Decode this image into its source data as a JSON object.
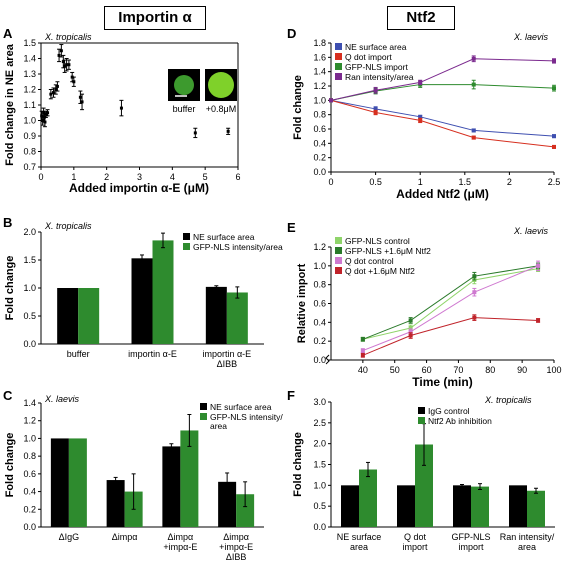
{
  "headers": {
    "left": "Importin α",
    "right": "Ntf2"
  },
  "colors": {
    "black": "#000000",
    "green": "#2e8b2e",
    "blue": "#3e4fb0",
    "red": "#d62f1f",
    "pink": "#cf79d0",
    "purple": "#7b2a8e",
    "lightgreen": "#8fd46a",
    "darkgreen": "#2a7a2a",
    "darkred": "#c0232a"
  },
  "chart_data": [
    {
      "panel": "A",
      "type": "scatter",
      "species": "X. tropicalis",
      "xlabel": "Added importin α-E (μM)",
      "ylabel": "Fold change in NE area",
      "xlim": [
        0,
        6
      ],
      "ylim": [
        0.7,
        1.5
      ],
      "xticks": [
        0,
        1,
        2,
        3,
        4,
        5,
        6
      ],
      "yticks": [
        0.7,
        0.8,
        0.9,
        1.0,
        1.1,
        1.2,
        1.3,
        1.4,
        1.5
      ],
      "inset_labels": [
        "buffer",
        "+0.8μM"
      ],
      "points": [
        {
          "x": 0.02,
          "y": 1.03,
          "e": 0.03
        },
        {
          "x": 0.05,
          "y": 1.0,
          "e": 0.03
        },
        {
          "x": 0.08,
          "y": 1.05,
          "e": 0.03
        },
        {
          "x": 0.1,
          "y": 1.02,
          "e": 0.03
        },
        {
          "x": 0.12,
          "y": 0.99,
          "e": 0.03
        },
        {
          "x": 0.15,
          "y": 1.04,
          "e": 0.02
        },
        {
          "x": 0.2,
          "y": 1.05,
          "e": 0.02
        },
        {
          "x": 0.3,
          "y": 1.17,
          "e": 0.03
        },
        {
          "x": 0.38,
          "y": 1.18,
          "e": 0.03
        },
        {
          "x": 0.45,
          "y": 1.2,
          "e": 0.03
        },
        {
          "x": 0.5,
          "y": 1.22,
          "e": 0.03
        },
        {
          "x": 0.55,
          "y": 1.42,
          "e": 0.04
        },
        {
          "x": 0.62,
          "y": 1.45,
          "e": 0.04
        },
        {
          "x": 0.68,
          "y": 1.38,
          "e": 0.04
        },
        {
          "x": 0.72,
          "y": 1.35,
          "e": 0.04
        },
        {
          "x": 0.78,
          "y": 1.36,
          "e": 0.04
        },
        {
          "x": 0.85,
          "y": 1.36,
          "e": 0.03
        },
        {
          "x": 0.95,
          "y": 1.28,
          "e": 0.03
        },
        {
          "x": 1.0,
          "y": 1.25,
          "e": 0.03
        },
        {
          "x": 1.2,
          "y": 1.15,
          "e": 0.04
        },
        {
          "x": 1.25,
          "y": 1.12,
          "e": 0.05
        },
        {
          "x": 2.45,
          "y": 1.08,
          "e": 0.05
        },
        {
          "x": 4.7,
          "y": 0.92,
          "e": 0.03
        },
        {
          "x": 5.7,
          "y": 0.93,
          "e": 0.02
        }
      ]
    },
    {
      "panel": "B",
      "type": "bar",
      "species": "X. tropicalis",
      "ylabel": "Fold change",
      "ylim": [
        0,
        2.0
      ],
      "yticks": [
        0,
        0.5,
        1.0,
        1.5,
        2.0
      ],
      "categories": [
        "buffer",
        "importin α-E",
        "importin α-E\nΔIBB"
      ],
      "series": [
        {
          "name": "NE surface area",
          "values": [
            1.0,
            1.53,
            1.02
          ],
          "err": [
            0,
            0.06,
            0.02
          ]
        },
        {
          "name": "GFP-NLS intensity/area",
          "values": [
            1.0,
            1.85,
            0.92
          ],
          "err": [
            0,
            0.13,
            0.1
          ]
        }
      ]
    },
    {
      "panel": "C",
      "type": "bar",
      "species": "X. laevis",
      "ylabel": "Fold change",
      "ylim": [
        0,
        1.4
      ],
      "yticks": [
        0,
        0.2,
        0.4,
        0.6,
        0.8,
        1.0,
        1.2,
        1.4
      ],
      "categories": [
        "ΔIgG",
        "Δimpα",
        "Δimpα\n+impα-E",
        "Δimpα\n+impα-E\nΔIBB"
      ],
      "series": [
        {
          "name": "NE surface area",
          "values": [
            1.0,
            0.53,
            0.91,
            0.51
          ],
          "err": [
            0,
            0.03,
            0.03,
            0.1
          ]
        },
        {
          "name": "GFP-NLS intensity/\narea",
          "values": [
            1.0,
            0.4,
            1.09,
            0.37
          ],
          "err": [
            0,
            0.2,
            0.18,
            0.14
          ]
        }
      ]
    },
    {
      "panel": "D",
      "type": "line",
      "species": "X. laevis",
      "xlabel": "Added Ntf2 (μM)",
      "ylabel": "Fold change",
      "xlim": [
        0,
        2.5
      ],
      "ylim": [
        0,
        1.8
      ],
      "xticks": [
        0,
        0.5,
        1,
        1.5,
        2,
        2.5
      ],
      "yticks": [
        0,
        0.2,
        0.4,
        0.6,
        0.8,
        1.0,
        1.2,
        1.4,
        1.6,
        1.8
      ],
      "x": [
        0,
        0.5,
        1.0,
        1.6,
        2.5
      ],
      "series": [
        {
          "name": "NE surface area",
          "values": [
            1.0,
            0.88,
            0.77,
            0.58,
            0.5
          ],
          "err": [
            0.02,
            0.03,
            0.02,
            0.02,
            0.02
          ]
        },
        {
          "name": "Q dot import",
          "values": [
            1.0,
            0.83,
            0.72,
            0.48,
            0.35
          ],
          "err": [
            0.02,
            0.03,
            0.03,
            0.02,
            0.02
          ]
        },
        {
          "name": "GFP-NLS import",
          "values": [
            1.0,
            1.13,
            1.22,
            1.22,
            1.17
          ],
          "err": [
            0.02,
            0.04,
            0.04,
            0.06,
            0.04
          ]
        },
        {
          "name": "Ran intensity/area",
          "values": [
            1.0,
            1.14,
            1.25,
            1.58,
            1.55
          ],
          "err": [
            0.02,
            0.04,
            0.03,
            0.04,
            0.03
          ]
        }
      ]
    },
    {
      "panel": "E",
      "type": "line",
      "species": "X. laevis",
      "xlabel": "Time (min)",
      "ylabel": "Relative import",
      "xlim": [
        30,
        100
      ],
      "ylim": [
        0,
        1.2
      ],
      "xticks": [
        40,
        50,
        60,
        70,
        80,
        90,
        100
      ],
      "yticks": [
        0,
        0.2,
        0.4,
        0.6,
        0.8,
        1.0,
        1.2
      ],
      "x": [
        40,
        55,
        75,
        95
      ],
      "series": [
        {
          "name": "GFP-NLS control",
          "values": [
            0.22,
            0.34,
            0.85,
            0.97
          ],
          "err": [
            0.02,
            0.03,
            0.04,
            0.03
          ]
        },
        {
          "name": "GFP-NLS +1.6μM Ntf2",
          "values": [
            0.22,
            0.42,
            0.89,
            1.0
          ],
          "err": [
            0.02,
            0.03,
            0.04,
            0.03
          ]
        },
        {
          "name": "Q dot control",
          "values": [
            0.1,
            0.3,
            0.72,
            1.0
          ],
          "err": [
            0.02,
            0.03,
            0.04,
            0.05
          ]
        },
        {
          "name": "Q dot +1.6μM Ntf2",
          "values": [
            0.05,
            0.26,
            0.45,
            0.42
          ],
          "err": [
            0.02,
            0.03,
            0.03,
            0.02
          ]
        }
      ]
    },
    {
      "panel": "F",
      "type": "bar",
      "species": "X. tropicalis",
      "ylabel": "Fold change",
      "ylim": [
        0,
        3.0
      ],
      "yticks": [
        0,
        0.5,
        1.0,
        1.5,
        2.0,
        2.5,
        3.0
      ],
      "categories": [
        "NE surface\narea",
        "Q dot\nimport",
        "GFP-NLS\nimport",
        "Ran intensity/\narea"
      ],
      "series": [
        {
          "name": "IgG control",
          "values": [
            1.0,
            1.0,
            1.0,
            1.0
          ],
          "err": [
            0,
            0,
            0.02,
            0
          ]
        },
        {
          "name": "Ntf2 Ab inhibition",
          "values": [
            1.38,
            1.98,
            0.97,
            0.87
          ],
          "err": [
            0.17,
            0.5,
            0.07,
            0.06
          ]
        }
      ]
    }
  ]
}
